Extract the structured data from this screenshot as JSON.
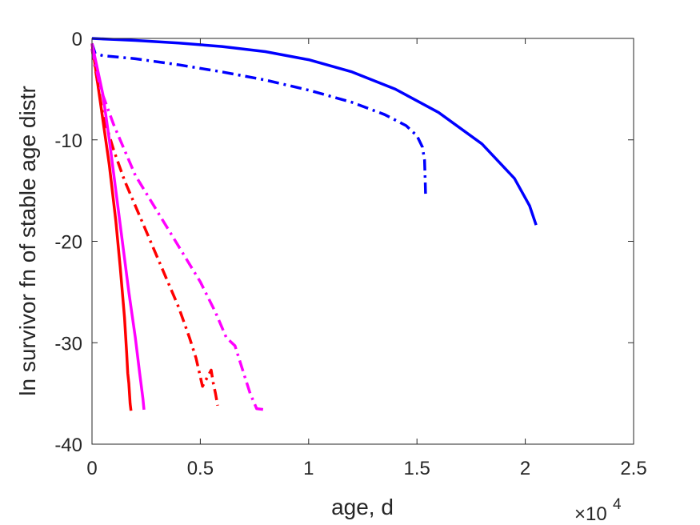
{
  "chart_data": {
    "type": "line",
    "title": "",
    "xlabel": "age, d",
    "ylabel": "ln survivor fn of stable age distr",
    "x_multiplier_label": "×10",
    "x_multiplier_exponent": "4",
    "xlim": [
      0,
      25000
    ],
    "ylim": [
      -40,
      0
    ],
    "x_ticks": [
      0,
      5000,
      10000,
      15000,
      20000,
      25000
    ],
    "x_tick_labels": [
      "0",
      "0.5",
      "1",
      "1.5",
      "2",
      "2.5"
    ],
    "y_ticks": [
      0,
      -10,
      -20,
      -30,
      -40
    ],
    "y_tick_labels": [
      "0",
      "-10",
      "-20",
      "-30",
      "-40"
    ],
    "grid": false,
    "legend": "none",
    "series": [
      {
        "color": "#0000ff",
        "style": "solid",
        "points": [
          [
            0,
            0
          ],
          [
            1000,
            -0.1
          ],
          [
            2000,
            -0.2
          ],
          [
            4000,
            -0.45
          ],
          [
            6000,
            -0.8
          ],
          [
            8000,
            -1.3
          ],
          [
            10000,
            -2.1
          ],
          [
            12000,
            -3.3
          ],
          [
            14000,
            -5.0
          ],
          [
            16000,
            -7.3
          ],
          [
            18000,
            -10.4
          ],
          [
            19500,
            -13.8
          ],
          [
            20200,
            -16.5
          ],
          [
            20500,
            -18.4
          ]
        ]
      },
      {
        "color": "#0000ff",
        "style": "dashdot",
        "points": [
          [
            0,
            -0.5
          ],
          [
            150,
            -1.5
          ],
          [
            500,
            -1.7
          ],
          [
            2000,
            -2.0
          ],
          [
            4000,
            -2.6
          ],
          [
            6000,
            -3.3
          ],
          [
            8000,
            -4.1
          ],
          [
            10000,
            -5.1
          ],
          [
            12000,
            -6.3
          ],
          [
            13500,
            -7.5
          ],
          [
            14500,
            -8.6
          ],
          [
            15000,
            -9.6
          ],
          [
            15250,
            -10.7
          ],
          [
            15350,
            -12.0
          ],
          [
            15380,
            -14.0
          ],
          [
            15400,
            -15.7
          ]
        ]
      },
      {
        "color": "#ff0000",
        "style": "solid",
        "points": [
          [
            0,
            -0.5
          ],
          [
            200,
            -3.5
          ],
          [
            500,
            -8.0
          ],
          [
            800,
            -12.5
          ],
          [
            1100,
            -18.0
          ],
          [
            1300,
            -22.5
          ],
          [
            1500,
            -27.5
          ],
          [
            1600,
            -31.0
          ],
          [
            1650,
            -33.0
          ],
          [
            1700,
            -34.0
          ],
          [
            1730,
            -35.0
          ],
          [
            1760,
            -36.0
          ],
          [
            1800,
            -36.7
          ]
        ]
      },
      {
        "color": "#ff0000",
        "style": "dashdot",
        "points": [
          [
            0,
            -1.0
          ],
          [
            500,
            -7.5
          ],
          [
            1000,
            -11.0
          ],
          [
            1500,
            -14.0
          ],
          [
            2000,
            -16.5
          ],
          [
            2500,
            -19.0
          ],
          [
            3000,
            -21.5
          ],
          [
            3500,
            -24.0
          ],
          [
            4000,
            -26.5
          ],
          [
            4500,
            -29.5
          ],
          [
            4800,
            -31.5
          ],
          [
            5100,
            -34.3
          ],
          [
            5300,
            -33.5
          ],
          [
            5500,
            -32.7
          ],
          [
            5600,
            -34.0
          ],
          [
            5700,
            -35.0
          ],
          [
            5800,
            -36.2
          ]
        ]
      },
      {
        "color": "#ff00ff",
        "style": "solid",
        "points": [
          [
            0,
            -0.5
          ],
          [
            200,
            -2.5
          ],
          [
            500,
            -5.5
          ],
          [
            800,
            -10.0
          ],
          [
            1100,
            -15.0
          ],
          [
            1400,
            -20.0
          ],
          [
            1700,
            -25.0
          ],
          [
            2000,
            -29.5
          ],
          [
            2200,
            -33.0
          ],
          [
            2350,
            -35.5
          ],
          [
            2400,
            -36.6
          ]
        ]
      },
      {
        "color": "#ff00ff",
        "style": "dashdot",
        "points": [
          [
            0,
            -1.0
          ],
          [
            400,
            -5.0
          ],
          [
            1000,
            -8.5
          ],
          [
            1500,
            -11.0
          ],
          [
            2000,
            -13.5
          ],
          [
            3000,
            -17.0
          ],
          [
            4000,
            -20.5
          ],
          [
            5000,
            -24.0
          ],
          [
            5700,
            -27.0
          ],
          [
            6200,
            -29.5
          ],
          [
            6600,
            -30.3
          ],
          [
            7000,
            -33.0
          ],
          [
            7300,
            -35.0
          ],
          [
            7600,
            -36.5
          ],
          [
            8000,
            -36.6
          ]
        ]
      }
    ]
  }
}
